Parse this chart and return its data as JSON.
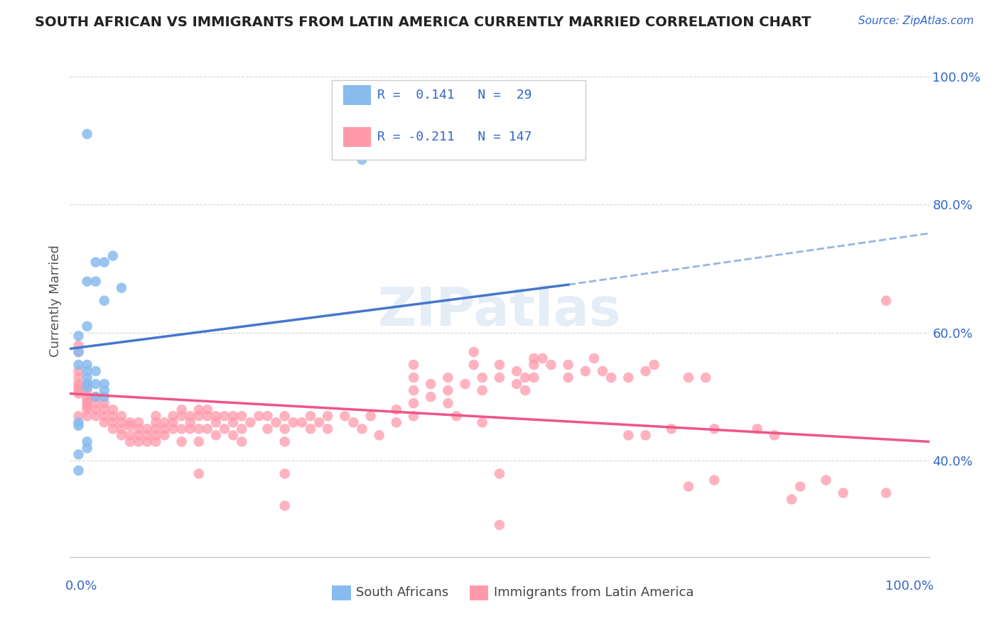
{
  "title": "SOUTH AFRICAN VS IMMIGRANTS FROM LATIN AMERICA CURRENTLY MARRIED CORRELATION CHART",
  "source": "Source: ZipAtlas.com",
  "ylabel": "Currently Married",
  "xlim": [
    0.0,
    1.0
  ],
  "ylim": [
    0.25,
    1.05
  ],
  "yticks": [
    0.4,
    0.6,
    0.8,
    1.0
  ],
  "ytick_labels": [
    "40.0%",
    "60.0%",
    "80.0%",
    "100.0%"
  ],
  "blue_color": "#88BBEE",
  "pink_color": "#FF99AA",
  "blue_line_color": "#4477CC",
  "pink_line_color": "#EE5588",
  "text_color": "#3366CC",
  "background_color": "#FFFFFF",
  "grid_color": "#CCCCCC",
  "blue_points": [
    [
      0.02,
      0.91
    ],
    [
      0.34,
      0.87
    ],
    [
      0.03,
      0.71
    ],
    [
      0.04,
      0.71
    ],
    [
      0.02,
      0.68
    ],
    [
      0.03,
      0.68
    ],
    [
      0.05,
      0.72
    ],
    [
      0.04,
      0.65
    ],
    [
      0.06,
      0.67
    ],
    [
      0.02,
      0.61
    ],
    [
      0.01,
      0.595
    ],
    [
      0.01,
      0.57
    ],
    [
      0.01,
      0.55
    ],
    [
      0.02,
      0.55
    ],
    [
      0.02,
      0.54
    ],
    [
      0.02,
      0.53
    ],
    [
      0.02,
      0.52
    ],
    [
      0.02,
      0.515
    ],
    [
      0.03,
      0.54
    ],
    [
      0.03,
      0.52
    ],
    [
      0.04,
      0.52
    ],
    [
      0.03,
      0.5
    ],
    [
      0.04,
      0.5
    ],
    [
      0.04,
      0.51
    ],
    [
      0.01,
      0.46
    ],
    [
      0.01,
      0.455
    ],
    [
      0.02,
      0.43
    ],
    [
      0.02,
      0.42
    ],
    [
      0.01,
      0.41
    ],
    [
      0.01,
      0.385
    ]
  ],
  "pink_points": [
    [
      0.01,
      0.54
    ],
    [
      0.01,
      0.53
    ],
    [
      0.01,
      0.52
    ],
    [
      0.01,
      0.515
    ],
    [
      0.01,
      0.51
    ],
    [
      0.01,
      0.505
    ],
    [
      0.01,
      0.58
    ],
    [
      0.01,
      0.57
    ],
    [
      0.01,
      0.47
    ],
    [
      0.02,
      0.52
    ],
    [
      0.02,
      0.51
    ],
    [
      0.02,
      0.5
    ],
    [
      0.02,
      0.495
    ],
    [
      0.02,
      0.49
    ],
    [
      0.02,
      0.485
    ],
    [
      0.02,
      0.48
    ],
    [
      0.02,
      0.47
    ],
    [
      0.03,
      0.5
    ],
    [
      0.03,
      0.49
    ],
    [
      0.03,
      0.48
    ],
    [
      0.03,
      0.47
    ],
    [
      0.04,
      0.49
    ],
    [
      0.04,
      0.48
    ],
    [
      0.04,
      0.47
    ],
    [
      0.04,
      0.46
    ],
    [
      0.05,
      0.48
    ],
    [
      0.05,
      0.47
    ],
    [
      0.05,
      0.46
    ],
    [
      0.05,
      0.45
    ],
    [
      0.06,
      0.47
    ],
    [
      0.06,
      0.46
    ],
    [
      0.06,
      0.45
    ],
    [
      0.06,
      0.44
    ],
    [
      0.07,
      0.46
    ],
    [
      0.07,
      0.455
    ],
    [
      0.07,
      0.44
    ],
    [
      0.07,
      0.43
    ],
    [
      0.08,
      0.46
    ],
    [
      0.08,
      0.45
    ],
    [
      0.08,
      0.44
    ],
    [
      0.08,
      0.43
    ],
    [
      0.09,
      0.45
    ],
    [
      0.09,
      0.44
    ],
    [
      0.09,
      0.43
    ],
    [
      0.1,
      0.47
    ],
    [
      0.1,
      0.46
    ],
    [
      0.1,
      0.45
    ],
    [
      0.1,
      0.44
    ],
    [
      0.1,
      0.43
    ],
    [
      0.11,
      0.46
    ],
    [
      0.11,
      0.45
    ],
    [
      0.11,
      0.44
    ],
    [
      0.12,
      0.47
    ],
    [
      0.12,
      0.46
    ],
    [
      0.12,
      0.45
    ],
    [
      0.13,
      0.48
    ],
    [
      0.13,
      0.47
    ],
    [
      0.13,
      0.45
    ],
    [
      0.13,
      0.43
    ],
    [
      0.14,
      0.47
    ],
    [
      0.14,
      0.46
    ],
    [
      0.14,
      0.45
    ],
    [
      0.15,
      0.48
    ],
    [
      0.15,
      0.47
    ],
    [
      0.15,
      0.45
    ],
    [
      0.15,
      0.43
    ],
    [
      0.15,
      0.38
    ],
    [
      0.16,
      0.48
    ],
    [
      0.16,
      0.47
    ],
    [
      0.16,
      0.45
    ],
    [
      0.17,
      0.47
    ],
    [
      0.17,
      0.46
    ],
    [
      0.17,
      0.44
    ],
    [
      0.18,
      0.47
    ],
    [
      0.18,
      0.45
    ],
    [
      0.19,
      0.47
    ],
    [
      0.19,
      0.46
    ],
    [
      0.19,
      0.44
    ],
    [
      0.2,
      0.47
    ],
    [
      0.2,
      0.45
    ],
    [
      0.2,
      0.43
    ],
    [
      0.21,
      0.46
    ],
    [
      0.22,
      0.47
    ],
    [
      0.23,
      0.47
    ],
    [
      0.23,
      0.45
    ],
    [
      0.24,
      0.46
    ],
    [
      0.25,
      0.47
    ],
    [
      0.25,
      0.45
    ],
    [
      0.25,
      0.43
    ],
    [
      0.25,
      0.38
    ],
    [
      0.25,
      0.33
    ],
    [
      0.26,
      0.46
    ],
    [
      0.27,
      0.46
    ],
    [
      0.28,
      0.47
    ],
    [
      0.28,
      0.45
    ],
    [
      0.29,
      0.46
    ],
    [
      0.3,
      0.47
    ],
    [
      0.3,
      0.45
    ],
    [
      0.32,
      0.47
    ],
    [
      0.33,
      0.46
    ],
    [
      0.34,
      0.45
    ],
    [
      0.35,
      0.47
    ],
    [
      0.36,
      0.44
    ],
    [
      0.38,
      0.48
    ],
    [
      0.38,
      0.46
    ],
    [
      0.4,
      0.55
    ],
    [
      0.4,
      0.53
    ],
    [
      0.4,
      0.51
    ],
    [
      0.4,
      0.49
    ],
    [
      0.4,
      0.47
    ],
    [
      0.42,
      0.52
    ],
    [
      0.42,
      0.5
    ],
    [
      0.44,
      0.53
    ],
    [
      0.44,
      0.51
    ],
    [
      0.44,
      0.49
    ],
    [
      0.45,
      0.47
    ],
    [
      0.46,
      0.52
    ],
    [
      0.47,
      0.57
    ],
    [
      0.47,
      0.55
    ],
    [
      0.48,
      0.53
    ],
    [
      0.48,
      0.51
    ],
    [
      0.48,
      0.46
    ],
    [
      0.5,
      0.55
    ],
    [
      0.5,
      0.53
    ],
    [
      0.5,
      0.38
    ],
    [
      0.5,
      0.3
    ],
    [
      0.52,
      0.54
    ],
    [
      0.52,
      0.52
    ],
    [
      0.53,
      0.53
    ],
    [
      0.53,
      0.51
    ],
    [
      0.54,
      0.56
    ],
    [
      0.54,
      0.55
    ],
    [
      0.54,
      0.53
    ],
    [
      0.55,
      0.56
    ],
    [
      0.56,
      0.55
    ],
    [
      0.58,
      0.55
    ],
    [
      0.58,
      0.53
    ],
    [
      0.6,
      0.54
    ],
    [
      0.61,
      0.56
    ],
    [
      0.62,
      0.54
    ],
    [
      0.63,
      0.53
    ],
    [
      0.65,
      0.53
    ],
    [
      0.65,
      0.44
    ],
    [
      0.67,
      0.54
    ],
    [
      0.67,
      0.44
    ],
    [
      0.68,
      0.55
    ],
    [
      0.7,
      0.45
    ],
    [
      0.72,
      0.53
    ],
    [
      0.72,
      0.36
    ],
    [
      0.74,
      0.53
    ],
    [
      0.75,
      0.45
    ],
    [
      0.75,
      0.37
    ],
    [
      0.8,
      0.45
    ],
    [
      0.82,
      0.44
    ],
    [
      0.84,
      0.34
    ],
    [
      0.85,
      0.36
    ],
    [
      0.88,
      0.37
    ],
    [
      0.9,
      0.35
    ],
    [
      0.95,
      0.35
    ],
    [
      0.95,
      0.65
    ]
  ],
  "blue_line_solid": [
    [
      0.0,
      0.575
    ],
    [
      0.58,
      0.675
    ]
  ],
  "blue_line_dashed": [
    [
      0.58,
      0.675
    ],
    [
      1.0,
      0.755
    ]
  ],
  "pink_line": [
    [
      0.0,
      0.505
    ],
    [
      1.0,
      0.43
    ]
  ]
}
